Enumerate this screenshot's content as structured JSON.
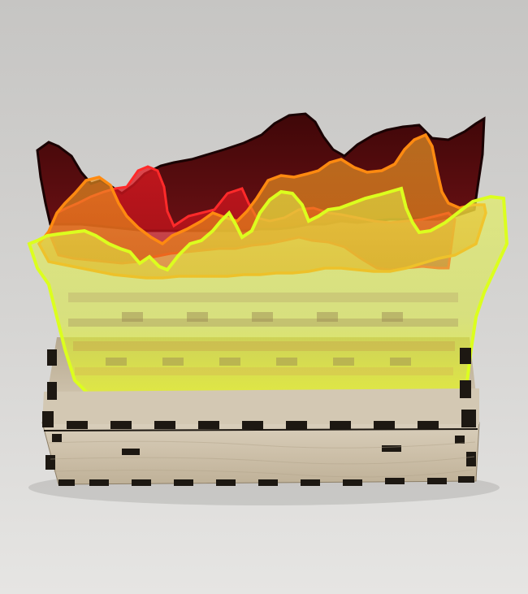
{
  "scene": {
    "subject": "acrylic-layered-line-sculpture",
    "colors": {
      "background_top": "#c9c8c6",
      "background_bottom": "#e4e3e1",
      "wood_face": "#cfc3ae",
      "wood_light": "#ddd3c1",
      "wood_dark": "#a7987f",
      "kerf": "#1d1812",
      "layer_maroon": "#5a0d12",
      "layer_red": "#d5151d",
      "layer_orange": "#f08a18",
      "layer_yellow_green": "#d8f21a"
    }
  }
}
